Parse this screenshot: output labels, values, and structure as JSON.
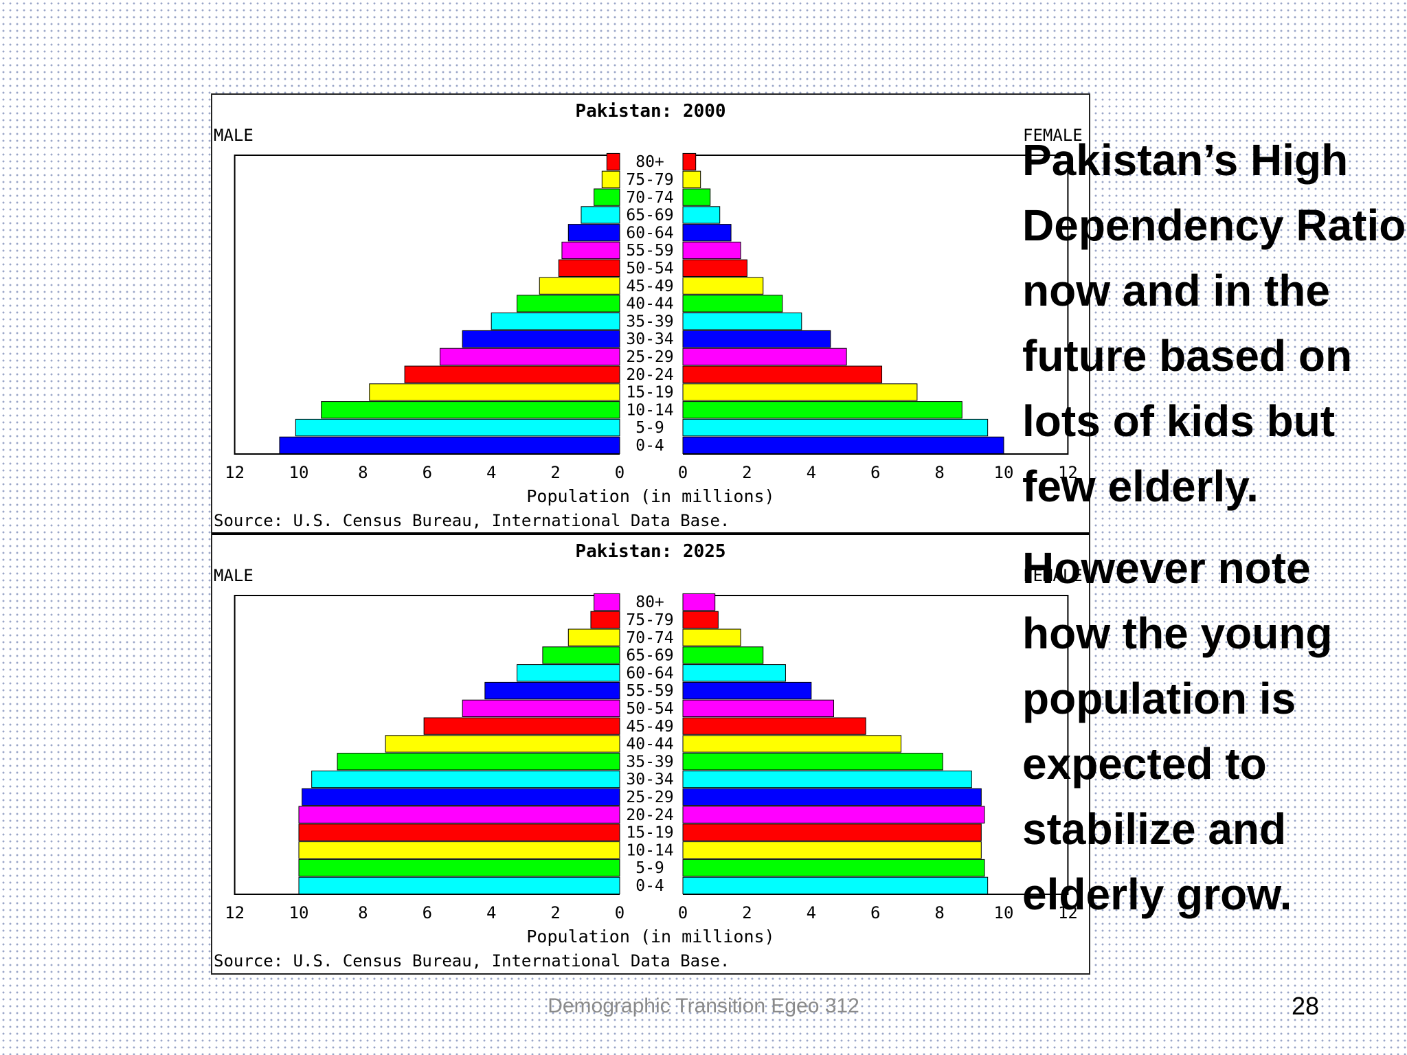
{
  "slide": {
    "bullets": [
      "Pakistan’s High Dependency Ratio now and in the future based on lots of kids but few elderly.",
      "However note how the young population is expected to stabilize and elderly grow."
    ],
    "footer": "Demographic Transition Egeo 312",
    "page_number": "28"
  },
  "chart_data": [
    {
      "type": "bar",
      "orientation": "population-pyramid",
      "title": "Pakistan: 2000",
      "left_label": "MALE",
      "right_label": "FEMALE",
      "xlabel": "Population (in millions)",
      "source": "Source: U.S. Census Bureau, International Data Base.",
      "xlim": [
        0,
        12
      ],
      "ticks": [
        "12",
        "10",
        "8",
        "6",
        "4",
        "2",
        "0",
        "0",
        "2",
        "4",
        "6",
        "8",
        "10",
        "12"
      ],
      "categories": [
        "0-4",
        "5-9",
        "10-14",
        "15-19",
        "20-24",
        "25-29",
        "30-34",
        "35-39",
        "40-44",
        "45-49",
        "50-54",
        "55-59",
        "60-64",
        "65-69",
        "70-74",
        "75-79",
        "80+"
      ],
      "colors": [
        "#0000ff",
        "#00ffff",
        "#00ff00",
        "#ffff00",
        "#ff0000",
        "#ff00ff",
        "#0000ff",
        "#00ffff",
        "#00ff00",
        "#ffff00",
        "#ff0000",
        "#ff00ff",
        "#0000ff",
        "#00ffff",
        "#00ff00",
        "#ffff00",
        "#ff0000"
      ],
      "series": [
        {
          "name": "MALE",
          "values": [
            10.6,
            10.1,
            9.3,
            7.8,
            6.7,
            5.6,
            4.9,
            4.0,
            3.2,
            2.5,
            1.9,
            1.8,
            1.6,
            1.2,
            0.8,
            0.55,
            0.4
          ]
        },
        {
          "name": "FEMALE",
          "values": [
            10.0,
            9.5,
            8.7,
            7.3,
            6.2,
            5.1,
            4.6,
            3.7,
            3.1,
            2.5,
            2.0,
            1.8,
            1.5,
            1.15,
            0.85,
            0.55,
            0.4
          ]
        }
      ]
    },
    {
      "type": "bar",
      "orientation": "population-pyramid",
      "title": "Pakistan: 2025",
      "left_label": "MALE",
      "right_label": "FEMALE",
      "xlabel": "Population (in millions)",
      "source": "Source: U.S. Census Bureau, International Data Base.",
      "xlim": [
        0,
        12
      ],
      "ticks": [
        "12",
        "10",
        "8",
        "6",
        "4",
        "2",
        "0",
        "0",
        "2",
        "4",
        "6",
        "8",
        "10",
        "12"
      ],
      "categories": [
        "0-4",
        "5-9",
        "10-14",
        "15-19",
        "20-24",
        "25-29",
        "30-34",
        "35-39",
        "40-44",
        "45-49",
        "50-54",
        "55-59",
        "60-64",
        "65-69",
        "70-74",
        "75-79",
        "80+"
      ],
      "colors": [
        "#00ffff",
        "#00ff00",
        "#ffff00",
        "#ff0000",
        "#ff00ff",
        "#0000ff",
        "#00ffff",
        "#00ff00",
        "#ffff00",
        "#ff0000",
        "#ff00ff",
        "#0000ff",
        "#00ffff",
        "#00ff00",
        "#ffff00",
        "#ff0000",
        "#ff00ff"
      ],
      "series": [
        {
          "name": "MALE",
          "values": [
            10.0,
            10.0,
            10.0,
            10.0,
            10.0,
            9.9,
            9.6,
            8.8,
            7.3,
            6.1,
            4.9,
            4.2,
            3.2,
            2.4,
            1.6,
            0.9,
            0.8
          ]
        },
        {
          "name": "FEMALE",
          "values": [
            9.5,
            9.4,
            9.3,
            9.3,
            9.4,
            9.3,
            9.0,
            8.1,
            6.8,
            5.7,
            4.7,
            4.0,
            3.2,
            2.5,
            1.8,
            1.1,
            1.0
          ]
        }
      ]
    }
  ]
}
